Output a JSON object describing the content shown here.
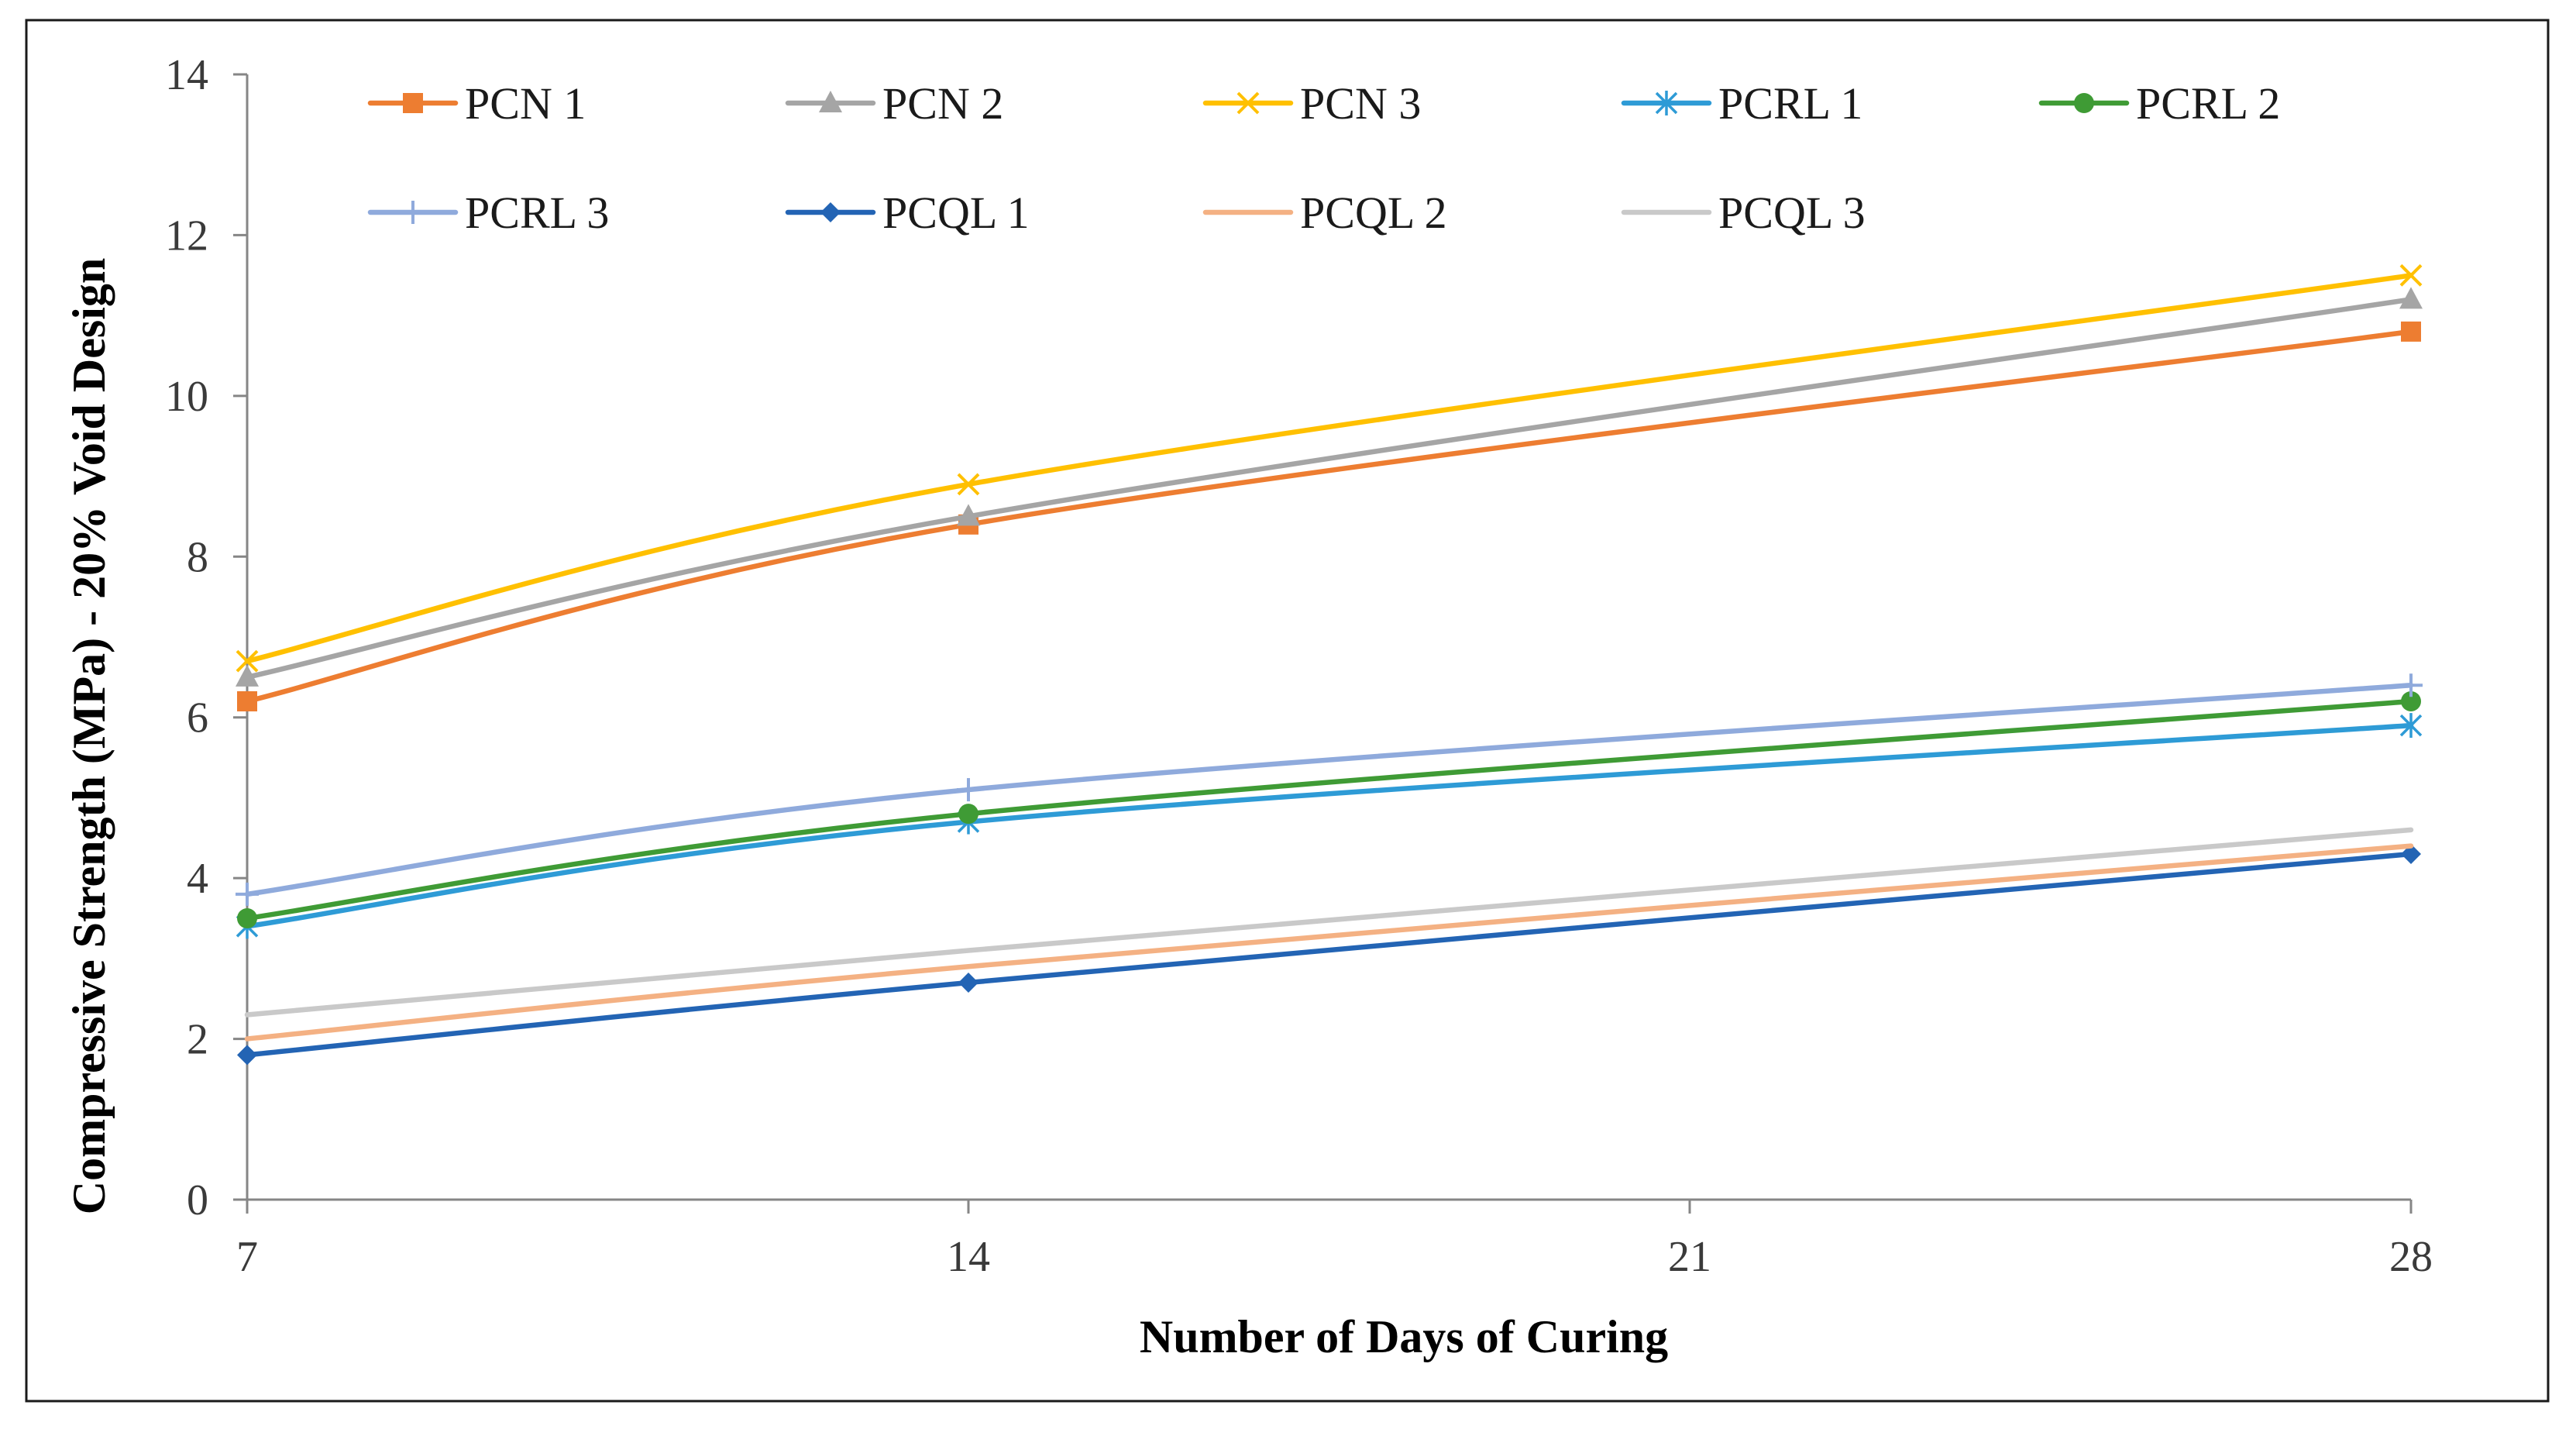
{
  "chart_data": {
    "type": "line",
    "title": "",
    "xlabel": "Number of Days of Curing",
    "ylabel": "Compressive Strength (MPa) - 20% Void Design",
    "x": [
      7,
      14,
      28
    ],
    "xticks": [
      "7",
      "14",
      "21",
      "28"
    ],
    "xtick_values": [
      7,
      14,
      21,
      28
    ],
    "yticks": [
      "0",
      "2",
      "4",
      "6",
      "8",
      "10",
      "12",
      "14"
    ],
    "ytick_values": [
      0,
      2,
      4,
      6,
      8,
      10,
      12,
      14
    ],
    "xlim": [
      7,
      28
    ],
    "ylim": [
      0,
      14
    ],
    "grid": false,
    "legend_position": "top",
    "smooth": true,
    "series": [
      {
        "name": "PCN 1",
        "values": [
          6.2,
          8.4,
          10.8
        ],
        "color": "#ED7D31",
        "marker": "square"
      },
      {
        "name": "PCN 2",
        "values": [
          6.5,
          8.5,
          11.2
        ],
        "color": "#A5A5A5",
        "marker": "triangle"
      },
      {
        "name": "PCN 3",
        "values": [
          6.7,
          8.9,
          11.5
        ],
        "color": "#FFC000",
        "marker": "x"
      },
      {
        "name": "PCRL 1",
        "values": [
          3.4,
          4.7,
          5.9
        ],
        "color": "#2E9BD6",
        "marker": "star"
      },
      {
        "name": "PCRL 2",
        "values": [
          3.5,
          4.8,
          6.2
        ],
        "color": "#3F9B35",
        "marker": "circle"
      },
      {
        "name": "PCRL 3",
        "values": [
          3.8,
          5.1,
          6.4
        ],
        "color": "#8FAADC",
        "marker": "plus"
      },
      {
        "name": "PCQL 1",
        "values": [
          1.8,
          2.7,
          4.3
        ],
        "color": "#2364B4",
        "marker": "diamond"
      },
      {
        "name": "PCQL 2",
        "values": [
          2.0,
          2.9,
          4.4
        ],
        "color": "#F4B183",
        "marker": "none"
      },
      {
        "name": "PCQL 3",
        "values": [
          2.3,
          3.1,
          4.6
        ],
        "color": "#C9C9C9",
        "marker": "none"
      }
    ]
  }
}
